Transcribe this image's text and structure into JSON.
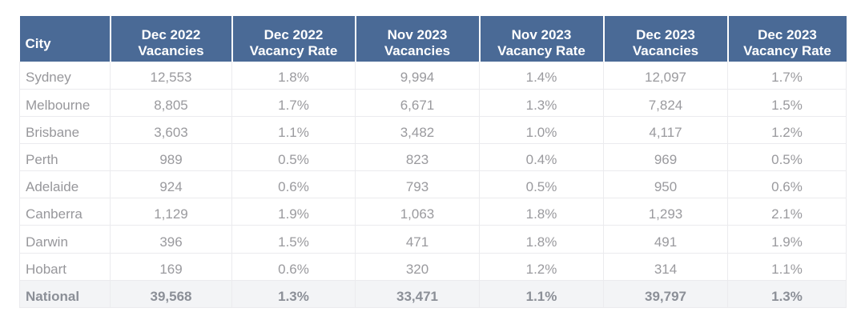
{
  "colors": {
    "header_bg": "#4a6a96",
    "header_text": "#ffffff",
    "body_text": "#9b9b9b",
    "grid_line": "#ededef",
    "total_row_bg": "#f3f4f6",
    "page_bg": "#ffffff"
  },
  "table": {
    "header": {
      "col0": "City",
      "col1_line1": "Dec 2022",
      "col1_line2": "Vacancies",
      "col2_line1": "Dec 2022",
      "col2_line2": "Vacancy Rate",
      "col3_line1": "Nov 2023",
      "col3_line2": "Vacancies",
      "col4_line1": "Nov 2023",
      "col4_line2": "Vacancy Rate",
      "col5_line1": "Dec 2023",
      "col5_line2": "Vacancies",
      "col6_line1": "Dec 2023",
      "col6_line2": "Vacancy Rate"
    },
    "rows": [
      {
        "cells": [
          "Sydney",
          "12,553",
          "1.8%",
          "9,994",
          "1.4%",
          "12,097",
          "1.7%"
        ]
      },
      {
        "cells": [
          "Melbourne",
          "8,805",
          "1.7%",
          "6,671",
          "1.3%",
          "7,824",
          "1.5%"
        ]
      },
      {
        "cells": [
          "Brisbane",
          "3,603",
          "1.1%",
          "3,482",
          "1.0%",
          "4,117",
          "1.2%"
        ]
      },
      {
        "cells": [
          "Perth",
          "989",
          "0.5%",
          "823",
          "0.4%",
          "969",
          "0.5%"
        ]
      },
      {
        "cells": [
          "Adelaide",
          "924",
          "0.6%",
          "793",
          "0.5%",
          "950",
          "0.6%"
        ]
      },
      {
        "cells": [
          "Canberra",
          "1,129",
          "1.9%",
          "1,063",
          "1.8%",
          "1,293",
          "2.1%"
        ]
      },
      {
        "cells": [
          "Darwin",
          "396",
          "1.5%",
          "471",
          "1.8%",
          "491",
          "1.9%"
        ]
      },
      {
        "cells": [
          "Hobart",
          "169",
          "0.6%",
          "320",
          "1.2%",
          "314",
          "1.1%"
        ]
      }
    ],
    "total": {
      "cells": [
        "National",
        "39,568",
        "1.3%",
        "33,471",
        "1.1%",
        "39,797",
        "1.3%"
      ]
    }
  },
  "chart_data": {
    "type": "table",
    "columns": [
      "City",
      "Dec 2022 Vacancies",
      "Dec 2022 Vacancy Rate",
      "Nov 2023 Vacancies",
      "Nov 2023 Vacancy Rate",
      "Dec 2023 Vacancies",
      "Dec 2023 Vacancy Rate"
    ],
    "rows": [
      [
        "Sydney",
        "12,553",
        "1.8%",
        "9,994",
        "1.4%",
        "12,097",
        "1.7%"
      ],
      [
        "Melbourne",
        "8,805",
        "1.7%",
        "6,671",
        "1.3%",
        "7,824",
        "1.5%"
      ],
      [
        "Brisbane",
        "3,603",
        "1.1%",
        "3,482",
        "1.0%",
        "4,117",
        "1.2%"
      ],
      [
        "Perth",
        "989",
        "0.5%",
        "823",
        "0.4%",
        "969",
        "0.5%"
      ],
      [
        "Adelaide",
        "924",
        "0.6%",
        "793",
        "0.5%",
        "950",
        "0.6%"
      ],
      [
        "Canberra",
        "1,129",
        "1.9%",
        "1,063",
        "1.8%",
        "1,293",
        "2.1%"
      ],
      [
        "Darwin",
        "396",
        "1.5%",
        "471",
        "1.8%",
        "491",
        "1.9%"
      ],
      [
        "Hobart",
        "169",
        "0.6%",
        "320",
        "1.2%",
        "314",
        "1.1%"
      ]
    ],
    "total_row": [
      "National",
      "39,568",
      "1.3%",
      "33,471",
      "1.1%",
      "39,797",
      "1.3%"
    ]
  }
}
